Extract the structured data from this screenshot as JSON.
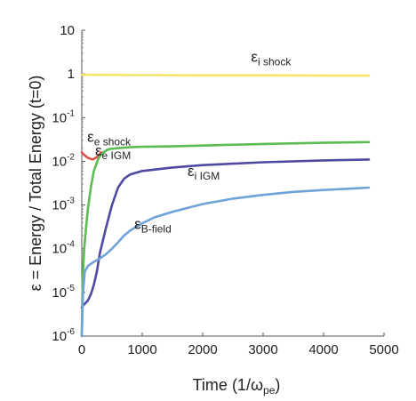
{
  "chart_data": {
    "type": "line",
    "title": "",
    "xlabel": {
      "main": "Time (1/ω",
      "sub": "pe",
      "tail": ")"
    },
    "ylabel": "ε = Energy / Total Energy (t=0)",
    "xlim": [
      0,
      5000
    ],
    "ylim": [
      1e-06,
      10
    ],
    "yscale": "log",
    "grid": false,
    "x_ticks": [
      0,
      1000,
      2000,
      3000,
      4000,
      5000
    ],
    "x_tick_labels": [
      "0",
      "1000",
      "2000",
      "3000",
      "4000",
      "5000"
    ],
    "y_ticks": [
      {
        "value": 10,
        "base": "10",
        "exp": ""
      },
      {
        "value": 1,
        "base": "1",
        "exp": ""
      },
      {
        "value": 0.1,
        "base": "10",
        "exp": "-1"
      },
      {
        "value": 0.01,
        "base": "10",
        "exp": "-2"
      },
      {
        "value": 0.001,
        "base": "10",
        "exp": "-3"
      },
      {
        "value": 0.0001,
        "base": "10",
        "exp": "-4"
      },
      {
        "value": 1e-05,
        "base": "10",
        "exp": "-5"
      },
      {
        "value": 1e-06,
        "base": "10",
        "exp": "-6"
      }
    ],
    "series": [
      {
        "name": "ε i shock",
        "label": {
          "sym": "ε",
          "sub": "i shock"
        },
        "color": "#f3e66b",
        "x": [
          0,
          1000,
          2000,
          3000,
          4000,
          4750
        ],
        "y": [
          0.95,
          0.94,
          0.93,
          0.93,
          0.92,
          0.92
        ]
      },
      {
        "name": "ε e shock",
        "label": {
          "sym": "ε",
          "sub": "e shock"
        },
        "color": "#e0524a",
        "x": [
          0,
          40,
          100,
          180,
          250,
          320
        ],
        "y": [
          0.016,
          0.014,
          0.012,
          0.011,
          0.0125,
          0.016
        ]
      },
      {
        "name": "ε e IGM",
        "label": {
          "sym": "ε",
          "sub": "e IGM"
        },
        "color": "#5cbb52",
        "x": [
          0,
          15,
          40,
          70,
          100,
          150,
          200,
          280,
          350,
          450,
          600,
          800,
          1000,
          1500,
          2000,
          3000,
          4000,
          4750
        ],
        "y": [
          1e-06,
          2e-05,
          0.0001,
          0.0003,
          0.0008,
          0.0025,
          0.006,
          0.012,
          0.016,
          0.019,
          0.02,
          0.021,
          0.0215,
          0.022,
          0.023,
          0.025,
          0.0265,
          0.0275
        ]
      },
      {
        "name": "ε i IGM",
        "label": {
          "sym": "ε",
          "sub": "i IGM"
        },
        "color": "#4f4aa0",
        "x": [
          0,
          20,
          50,
          100,
          150,
          200,
          250,
          300,
          400,
          500,
          600,
          700,
          800,
          1000,
          1500,
          2000,
          3000,
          4000,
          4750
        ],
        "y": [
          4.5e-06,
          5e-06,
          5.5e-06,
          6.5e-06,
          9e-06,
          1.5e-05,
          3e-05,
          8e-05,
          0.0003,
          0.001,
          0.0025,
          0.004,
          0.005,
          0.006,
          0.0072,
          0.0082,
          0.0095,
          0.0105,
          0.011
        ]
      },
      {
        "name": "ε B-field",
        "label": {
          "sym": "ε",
          "sub": "B-field"
        },
        "color": "#6fa2d8",
        "x": [
          0,
          20,
          50,
          100,
          150,
          200,
          300,
          400,
          500,
          600,
          700,
          800,
          1000,
          1200,
          1500,
          2000,
          2500,
          3000,
          3500,
          4000,
          4500,
          4750
        ],
        "y": [
          1e-06,
          1e-05,
          3e-05,
          4e-05,
          4.5e-05,
          5e-05,
          6e-05,
          7.5e-05,
          0.0001,
          0.00014,
          0.0002,
          0.00026,
          0.00038,
          0.00052,
          0.0007,
          0.00105,
          0.0014,
          0.0017,
          0.002,
          0.0022,
          0.0024,
          0.0025
        ]
      }
    ]
  }
}
